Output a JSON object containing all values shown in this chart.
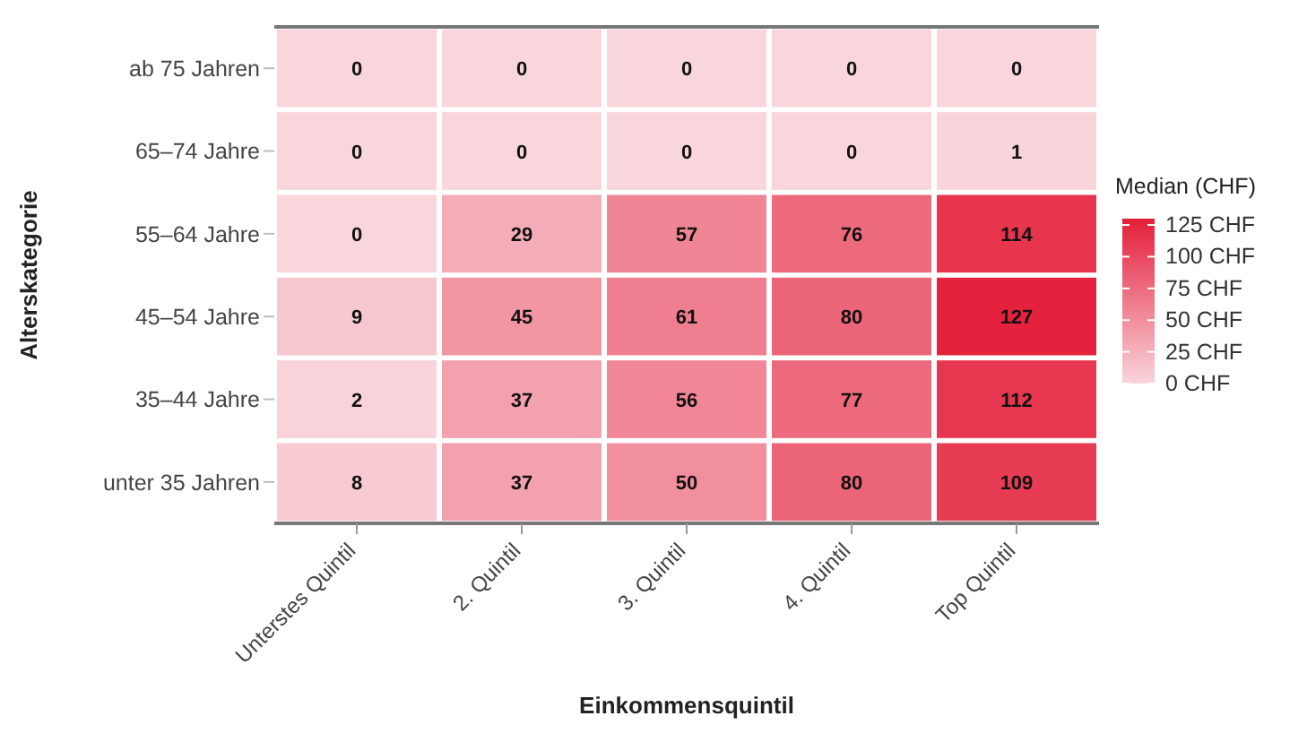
{
  "chart_data": {
    "type": "heatmap",
    "xlabel": "Einkommensquintil",
    "ylabel": "Alterskategorie",
    "legend_title": "Median (CHF)",
    "categories": [
      "Unterstes Quintil",
      "2. Quintil",
      "3. Quintil",
      "4. Quintil",
      "Top Quintil"
    ],
    "y_categories": [
      "ab 75 Jahren",
      "65–74 Jahre",
      "55–64 Jahre",
      "45–54 Jahre",
      "35–44 Jahre",
      "unter 35 Jahren"
    ],
    "cells": [
      [
        0,
        0,
        0,
        0,
        0
      ],
      [
        0,
        0,
        0,
        0,
        1
      ],
      [
        0,
        29,
        57,
        76,
        114
      ],
      [
        9,
        45,
        61,
        80,
        127
      ],
      [
        2,
        37,
        56,
        77,
        112
      ],
      [
        8,
        37,
        50,
        80,
        109
      ]
    ],
    "colors": [
      "#f9d5dc",
      "#e41e3a"
    ],
    "clim": [
      0,
      130
    ],
    "cticks": [
      {
        "value": 0,
        "label": "0 CHF"
      },
      {
        "value": 25,
        "label": "25 CHF"
      },
      {
        "value": 50,
        "label": "50 CHF"
      },
      {
        "value": 75,
        "label": "75 CHF"
      },
      {
        "value": 100,
        "label": "100 CHF"
      },
      {
        "value": 125,
        "label": "125 CHF"
      }
    ],
    "data_labels": true
  }
}
